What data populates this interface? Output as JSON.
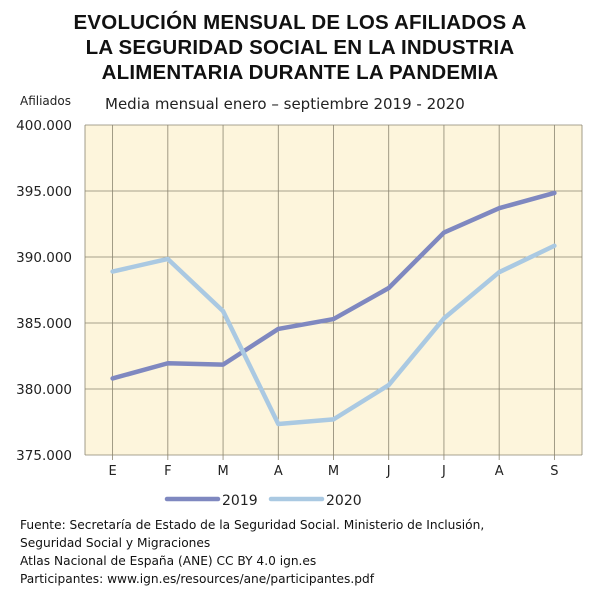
{
  "chart_data": {
    "type": "line",
    "title": "EVOLUCIÓN MENSUAL DE  LOS AFILIADOS A LA SEGURIDAD SOCIAL EN LA INDUSTRIA ALIMENTARIA DURANTE LA PANDEMIA",
    "title_lines": [
      "EVOLUCIÓN MENSUAL DE  LOS AFILIADOS A",
      "LA SEGURIDAD SOCIAL EN LA INDUSTRIA",
      "ALIMENTARIA DURANTE LA PANDEMIA"
    ],
    "subtitle": "Media mensual enero – septiembre 2019 - 2020",
    "xlabel": "",
    "ylabel": "Afiliados",
    "categories": [
      "E",
      "F",
      "M",
      "A",
      "M",
      "J",
      "J",
      "A",
      "S"
    ],
    "ylim": [
      375000,
      400000
    ],
    "yticks": [
      375000,
      380000,
      385000,
      390000,
      395000,
      400000
    ],
    "ytick_labels": [
      "375.000",
      "380.000",
      "385.000",
      "390.000",
      "395.000",
      "400.000"
    ],
    "grid": true,
    "background": "#fdf5dc",
    "legend_position": "bottom",
    "series": [
      {
        "name": "2019",
        "color": "#7f88c0",
        "values": [
          380800,
          381950,
          381850,
          384550,
          385300,
          387650,
          391850,
          393700,
          394850
        ]
      },
      {
        "name": "2020",
        "color": "#aac9e2",
        "values": [
          388900,
          389850,
          385900,
          377350,
          377700,
          380300,
          385350,
          388850,
          390850
        ]
      }
    ]
  },
  "footer": {
    "lines": [
      "Fuente: Secretaría de Estado de la Seguridad Social. Ministerio de Inclusión,",
      "Seguridad Social y Migraciones",
      "Atlas Nacional de España (ANE) CC BY 4.0 ign.es",
      "Participantes: www.ign.es/resources/ane/participantes.pdf"
    ]
  }
}
